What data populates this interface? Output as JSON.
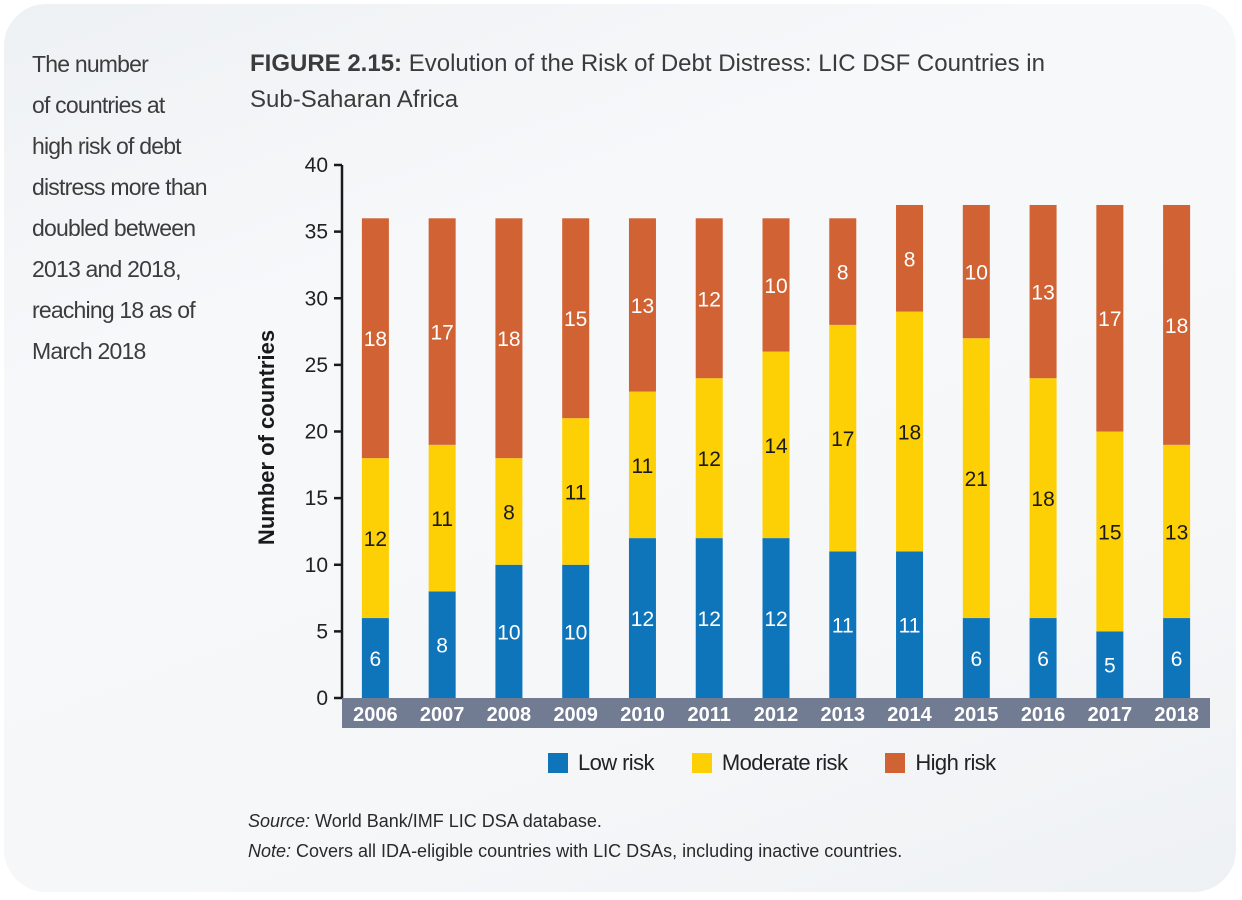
{
  "sidebar": {
    "lines": [
      "The number",
      "of countries at",
      "high risk of debt",
      "distress more than",
      "doubled between",
      "2013 and 2018,",
      "reaching 18 as of",
      "March 2018"
    ]
  },
  "figure": {
    "label": "FIGURE 2.15:",
    "title_line1": " Evolution of the Risk of Debt Distress: LIC DSF Countries in",
    "title_line2": "Sub-Saharan Africa"
  },
  "notes": {
    "source_label": "Source:",
    "source_text": " World Bank/IMF LIC DSA database.",
    "note_label": "Note:",
    "note_text": " Covers all IDA-eligible countries with LIC DSAs, including inactive countries."
  },
  "chart_data": {
    "type": "bar",
    "stacked": true,
    "title": "Evolution of the Risk of Debt Distress: LIC DSF Countries in Sub-Saharan Africa",
    "xlabel": "",
    "ylabel": "Number of countries",
    "ylim": [
      0,
      40
    ],
    "yticks": [
      0,
      5,
      10,
      15,
      20,
      25,
      30,
      35,
      40
    ],
    "grid": false,
    "legend_position": "bottom",
    "categories": [
      "2006",
      "2007",
      "2008",
      "2009",
      "2010",
      "2011",
      "2012",
      "2013",
      "2014",
      "2015",
      "2016",
      "2017",
      "2018"
    ],
    "series": [
      {
        "name": "Low risk",
        "color": "#0f75bb",
        "label_color": "#ffffff",
        "values": [
          6,
          8,
          10,
          10,
          12,
          12,
          12,
          11,
          11,
          6,
          6,
          5,
          6
        ]
      },
      {
        "name": "Moderate risk",
        "color": "#fdd005",
        "label_color": "#1a1a1a",
        "values": [
          12,
          11,
          8,
          11,
          11,
          12,
          14,
          17,
          18,
          21,
          18,
          15,
          13
        ]
      },
      {
        "name": "High risk",
        "color": "#d06233",
        "label_color": "#ffffff",
        "values": [
          18,
          17,
          18,
          15,
          13,
          12,
          10,
          8,
          8,
          10,
          13,
          17,
          18
        ]
      }
    ],
    "axis_band_color": "#717b92"
  }
}
